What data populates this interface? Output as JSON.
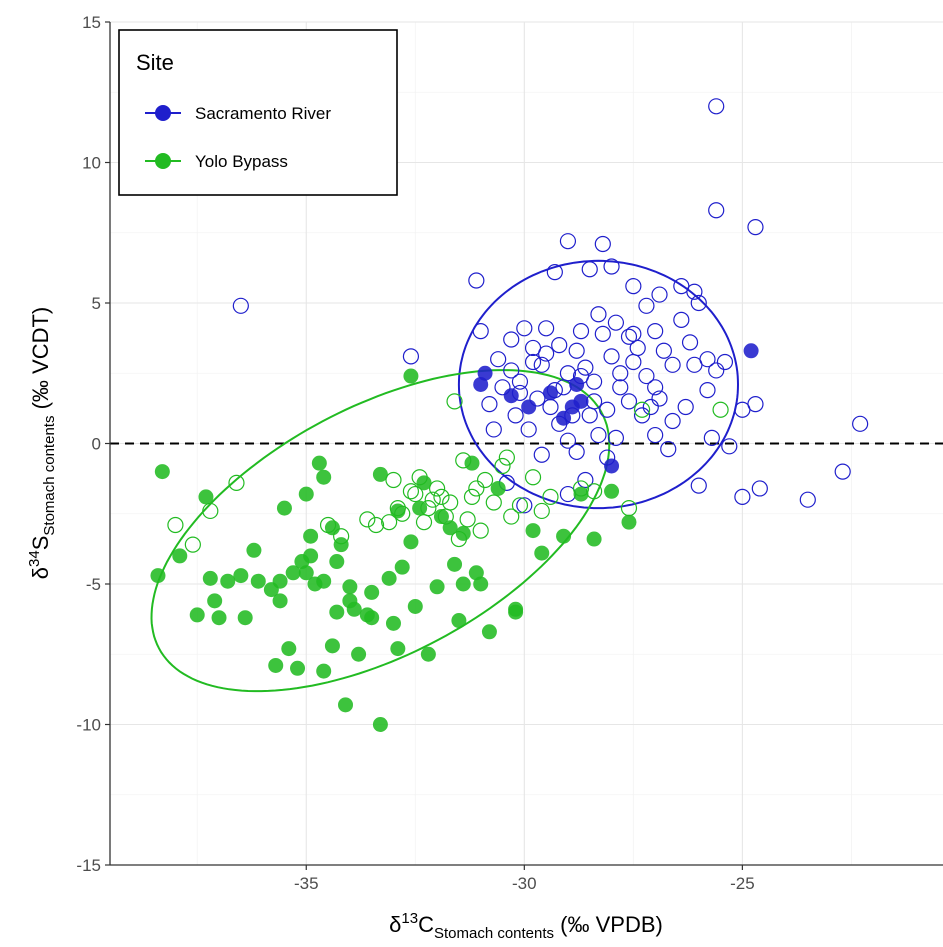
{
  "chart_data": {
    "type": "scatter",
    "title": "",
    "xlabel": {
      "prefix": "δ",
      "sup": "13",
      "element": "C",
      "sub": "Stomach contents",
      "suffix": " (‰ VPDB)"
    },
    "ylabel": {
      "prefix": "δ",
      "sup": "34",
      "element": "S",
      "sub": "Stomach contents",
      "suffix": " (‰ VCDT)"
    },
    "xlim": [
      -39.5,
      -20.4
    ],
    "ylim": [
      -15,
      15
    ],
    "x_ticks": [
      -35,
      -30,
      -25
    ],
    "y_ticks": [
      -15,
      -10,
      -5,
      0,
      5,
      10,
      15
    ],
    "x_tick_labels": [
      "-35",
      "-30",
      "-25"
    ],
    "y_tick_labels": [
      "-15",
      "-10",
      "-5",
      "0",
      "5",
      "10",
      "15"
    ],
    "reference_line": {
      "y": 0,
      "style": "dashed"
    },
    "grid": true,
    "legend": {
      "title": "Site",
      "placement": "top-left"
    },
    "series": [
      {
        "name": "Sacramento River",
        "color": "#1f1fcc",
        "points_open": [
          [
            -36.5,
            4.9
          ],
          [
            -32.6,
            3.1
          ],
          [
            -31.1,
            5.8
          ],
          [
            -31.0,
            4.0
          ],
          [
            -30.6,
            3.0
          ],
          [
            -30.3,
            3.7
          ],
          [
            -30.0,
            4.1
          ],
          [
            -30.1,
            1.8
          ],
          [
            -29.8,
            3.4
          ],
          [
            -29.6,
            2.8
          ],
          [
            -29.5,
            4.1
          ],
          [
            -29.2,
            3.5
          ],
          [
            -29.0,
            2.5
          ],
          [
            -28.8,
            3.3
          ],
          [
            -28.6,
            2.7
          ],
          [
            -28.4,
            2.2
          ],
          [
            -28.2,
            3.9
          ],
          [
            -28.0,
            3.1
          ],
          [
            -27.8,
            2.5
          ],
          [
            -27.6,
            3.8
          ],
          [
            -27.4,
            3.4
          ],
          [
            -27.2,
            2.4
          ],
          [
            -27.0,
            4.0
          ],
          [
            -26.8,
            3.3
          ],
          [
            -26.6,
            2.8
          ],
          [
            -26.4,
            4.4
          ],
          [
            -26.2,
            3.6
          ],
          [
            -26.0,
            5.0
          ],
          [
            -25.8,
            3.0
          ],
          [
            -25.6,
            2.6
          ],
          [
            -29.3,
            6.1
          ],
          [
            -29.0,
            7.2
          ],
          [
            -28.5,
            6.2
          ],
          [
            -28.2,
            7.1
          ],
          [
            -28.0,
            6.3
          ],
          [
            -27.5,
            5.6
          ],
          [
            -27.2,
            4.9
          ],
          [
            -26.9,
            5.3
          ],
          [
            -26.4,
            5.6
          ],
          [
            -26.1,
            5.4
          ],
          [
            -25.6,
            8.3
          ],
          [
            -24.7,
            7.7
          ],
          [
            -25.6,
            12.0
          ],
          [
            -25.4,
            2.9
          ],
          [
            -25.0,
            1.2
          ],
          [
            -24.7,
            1.4
          ],
          [
            -25.3,
            -0.1
          ],
          [
            -25.0,
            -1.9
          ],
          [
            -24.6,
            -1.6
          ],
          [
            -23.5,
            -2.0
          ],
          [
            -22.7,
            -1.0
          ],
          [
            -22.3,
            0.7
          ],
          [
            -25.7,
            0.2
          ],
          [
            -26.0,
            -1.5
          ],
          [
            -26.7,
            -0.2
          ],
          [
            -27.0,
            0.3
          ],
          [
            -27.3,
            1.0
          ],
          [
            -27.6,
            1.5
          ],
          [
            -27.9,
            0.2
          ],
          [
            -28.1,
            -0.5
          ],
          [
            -28.3,
            0.3
          ],
          [
            -28.6,
            -1.3
          ],
          [
            -28.8,
            -0.3
          ],
          [
            -29.0,
            0.1
          ],
          [
            -29.2,
            0.7
          ],
          [
            -29.4,
            1.3
          ],
          [
            -29.6,
            -0.4
          ],
          [
            -29.9,
            0.5
          ],
          [
            -30.2,
            1.0
          ],
          [
            -30.4,
            -1.4
          ],
          [
            -30.7,
            0.5
          ],
          [
            -30.8,
            1.4
          ],
          [
            -30.5,
            2.0
          ],
          [
            -30.1,
            2.2
          ],
          [
            -29.7,
            1.6
          ],
          [
            -29.3,
            1.9
          ],
          [
            -28.9,
            1.0
          ],
          [
            -28.7,
            2.4
          ],
          [
            -28.4,
            1.5
          ],
          [
            -28.1,
            1.2
          ],
          [
            -27.8,
            2.0
          ],
          [
            -27.5,
            2.9
          ],
          [
            -27.1,
            1.3
          ],
          [
            -26.9,
            1.6
          ],
          [
            -26.6,
            0.8
          ],
          [
            -26.3,
            1.3
          ],
          [
            -26.1,
            2.8
          ],
          [
            -25.8,
            1.9
          ],
          [
            -29.5,
            3.2
          ],
          [
            -29.1,
            2.0
          ],
          [
            -28.7,
            4.0
          ],
          [
            -28.3,
            4.6
          ],
          [
            -27.9,
            4.3
          ],
          [
            -27.5,
            3.9
          ],
          [
            -27.0,
            2.0
          ],
          [
            -30.3,
            2.6
          ],
          [
            -29.8,
            2.9
          ],
          [
            -28.5,
            1.0
          ],
          [
            -30.0,
            -2.2
          ],
          [
            -29.0,
            -1.8
          ]
        ],
        "points_filled": [
          [
            -31.0,
            2.1
          ],
          [
            -30.9,
            2.5
          ],
          [
            -30.3,
            1.7
          ],
          [
            -29.9,
            1.3
          ],
          [
            -29.4,
            1.8
          ],
          [
            -29.1,
            0.9
          ],
          [
            -28.9,
            1.3
          ],
          [
            -28.8,
            2.1
          ],
          [
            -28.7,
            1.5
          ],
          [
            -28.0,
            -0.8
          ],
          [
            -24.8,
            3.3
          ]
        ],
        "ellipse": {
          "center": [
            -28.3,
            2.1
          ],
          "semi_axis_x": 3.2,
          "semi_axis_y": 4.4,
          "rotation_deg": 0
        }
      },
      {
        "name": "Yolo Bypass",
        "color": "#22bb22",
        "points_open": [
          [
            -38.0,
            -2.9
          ],
          [
            -37.6,
            -3.6
          ],
          [
            -37.2,
            -2.4
          ],
          [
            -36.6,
            -1.4
          ],
          [
            -34.5,
            -2.9
          ],
          [
            -33.0,
            -1.3
          ],
          [
            -32.8,
            -2.5
          ],
          [
            -32.5,
            -1.8
          ],
          [
            -32.2,
            -2.3
          ],
          [
            -31.9,
            -1.9
          ],
          [
            -31.7,
            -2.1
          ],
          [
            -31.5,
            -3.4
          ],
          [
            -31.3,
            -2.7
          ],
          [
            -31.1,
            -1.6
          ],
          [
            -31.0,
            -3.1
          ],
          [
            -30.7,
            -2.1
          ],
          [
            -30.5,
            -0.8
          ],
          [
            -30.3,
            -2.6
          ],
          [
            -30.1,
            -2.2
          ],
          [
            -29.8,
            -1.2
          ],
          [
            -29.6,
            -2.4
          ],
          [
            -29.4,
            -1.9
          ],
          [
            -28.7,
            -1.6
          ],
          [
            -28.4,
            -1.7
          ],
          [
            -27.6,
            -2.3
          ],
          [
            -27.3,
            1.2
          ],
          [
            -25.5,
            1.2
          ],
          [
            -31.6,
            1.5
          ],
          [
            -33.4,
            -2.9
          ],
          [
            -33.1,
            -2.8
          ],
          [
            -32.9,
            -2.3
          ],
          [
            -32.4,
            -1.2
          ],
          [
            -32.0,
            -1.6
          ],
          [
            -31.8,
            -2.6
          ],
          [
            -31.4,
            -0.6
          ],
          [
            -30.9,
            -1.3
          ],
          [
            -30.4,
            -0.5
          ],
          [
            -31.2,
            -1.9
          ],
          [
            -32.6,
            -1.7
          ],
          [
            -32.3,
            -2.8
          ],
          [
            -33.6,
            -2.7
          ],
          [
            -34.2,
            -3.3
          ],
          [
            -32.1,
            -2.0
          ]
        ],
        "points_filled": [
          [
            -38.4,
            -4.7
          ],
          [
            -38.3,
            -1.0
          ],
          [
            -37.9,
            -4.0
          ],
          [
            -37.5,
            -6.1
          ],
          [
            -37.3,
            -1.9
          ],
          [
            -37.2,
            -4.8
          ],
          [
            -37.1,
            -5.6
          ],
          [
            -37.0,
            -6.2
          ],
          [
            -36.8,
            -4.9
          ],
          [
            -36.5,
            -4.7
          ],
          [
            -36.4,
            -6.2
          ],
          [
            -36.2,
            -3.8
          ],
          [
            -35.8,
            -5.2
          ],
          [
            -35.6,
            -4.9
          ],
          [
            -35.5,
            -2.3
          ],
          [
            -35.4,
            -7.3
          ],
          [
            -35.3,
            -4.6
          ],
          [
            -35.1,
            -4.2
          ],
          [
            -34.9,
            -4.0
          ],
          [
            -34.8,
            -5.0
          ],
          [
            -34.7,
            -0.7
          ],
          [
            -34.6,
            -1.2
          ],
          [
            -34.4,
            -3.0
          ],
          [
            -34.3,
            -4.2
          ],
          [
            -34.2,
            -3.6
          ],
          [
            -34.0,
            -5.6
          ],
          [
            -33.9,
            -5.9
          ],
          [
            -33.8,
            -7.5
          ],
          [
            -33.6,
            -6.1
          ],
          [
            -33.5,
            -5.3
          ],
          [
            -33.3,
            -1.1
          ],
          [
            -33.1,
            -4.8
          ],
          [
            -33.0,
            -6.4
          ],
          [
            -32.9,
            -7.3
          ],
          [
            -32.8,
            -4.4
          ],
          [
            -32.6,
            -3.5
          ],
          [
            -32.5,
            -5.8
          ],
          [
            -32.4,
            -2.3
          ],
          [
            -32.2,
            -7.5
          ],
          [
            -32.0,
            -5.1
          ],
          [
            -31.9,
            -2.6
          ],
          [
            -31.7,
            -3.0
          ],
          [
            -31.5,
            -6.3
          ],
          [
            -31.4,
            -5.0
          ],
          [
            -31.2,
            -0.7
          ],
          [
            -31.1,
            -4.6
          ],
          [
            -31.0,
            -5.0
          ],
          [
            -30.8,
            -6.7
          ],
          [
            -30.2,
            -5.9
          ],
          [
            -29.8,
            -3.1
          ],
          [
            -29.6,
            -3.9
          ],
          [
            -29.1,
            -3.3
          ],
          [
            -28.7,
            -1.8
          ],
          [
            -28.4,
            -3.4
          ],
          [
            -28.0,
            -1.7
          ],
          [
            -27.6,
            -2.8
          ],
          [
            -35.0,
            -1.8
          ],
          [
            -34.9,
            -3.3
          ],
          [
            -34.6,
            -4.9
          ],
          [
            -34.4,
            -7.2
          ],
          [
            -34.1,
            -9.3
          ],
          [
            -33.3,
            -10.0
          ],
          [
            -35.7,
            -7.9
          ],
          [
            -35.2,
            -8.0
          ],
          [
            -34.6,
            -8.1
          ],
          [
            -35.6,
            -5.6
          ],
          [
            -35.0,
            -4.6
          ],
          [
            -34.3,
            -6.0
          ],
          [
            -32.6,
            2.4
          ],
          [
            -33.5,
            -6.2
          ],
          [
            -32.9,
            -2.4
          ],
          [
            -30.2,
            -6.0
          ],
          [
            -31.6,
            -4.3
          ],
          [
            -30.6,
            -1.6
          ],
          [
            -36.1,
            -4.9
          ],
          [
            -32.3,
            -1.4
          ],
          [
            -31.4,
            -3.2
          ],
          [
            -34.0,
            -5.1
          ]
        ],
        "ellipse": {
          "center": [
            -33.3,
            -3.1
          ],
          "semi_axis_x": 5.75,
          "semi_axis_y": 4.4,
          "rotation_deg": -28
        }
      }
    ]
  }
}
